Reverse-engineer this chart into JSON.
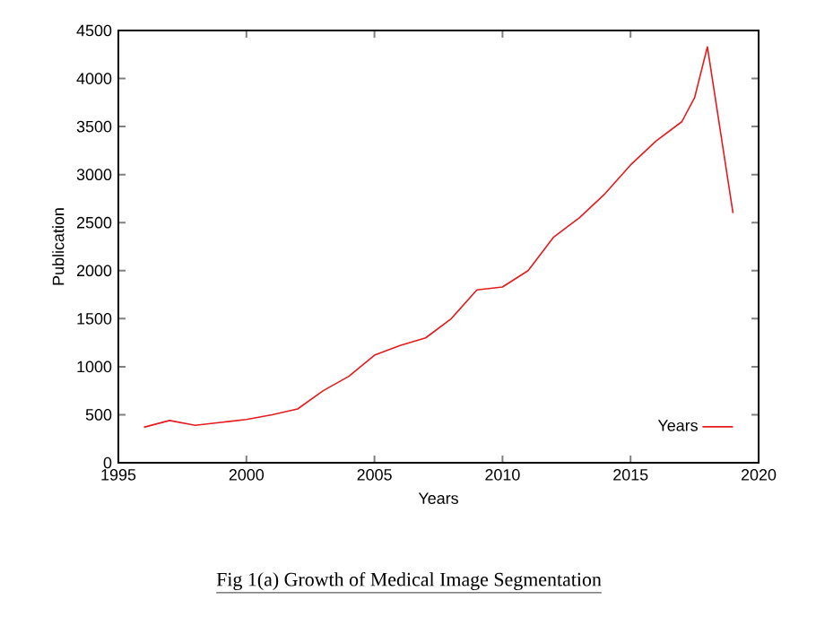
{
  "chart_data": {
    "type": "line",
    "xlabel": "Years",
    "ylabel": "Publication",
    "annotations": [
      "Fig 1(a) Growth of Medical Image Segmentation"
    ],
    "x": [
      1996,
      1997,
      1998,
      1999,
      2000,
      2001,
      2002,
      2003,
      2004,
      2005,
      2006,
      2007,
      2008,
      2009,
      2010,
      2011,
      2012,
      2013,
      2014,
      2015,
      2016,
      2017,
      2017.5,
      2018,
      2019
    ],
    "series": [
      {
        "name": "Years",
        "color": "#e41a1c",
        "values": [
          370,
          440,
          390,
          420,
          450,
          500,
          560,
          750,
          900,
          1120,
          1220,
          1300,
          1500,
          1800,
          1830,
          2000,
          2350,
          2550,
          2800,
          3100,
          3350,
          3550,
          3800,
          4330,
          2600
        ]
      }
    ],
    "xlim": [
      1995,
      2020
    ],
    "ylim": [
      0,
      4500
    ],
    "xticks": [
      1995,
      2000,
      2005,
      2010,
      2015,
      2020
    ],
    "yticks": [
      0,
      500,
      1000,
      1500,
      2000,
      2500,
      3000,
      3500,
      4000,
      4500
    ],
    "legend": "bottom right",
    "grid": false,
    "marker": "none",
    "line_style": "solid"
  }
}
